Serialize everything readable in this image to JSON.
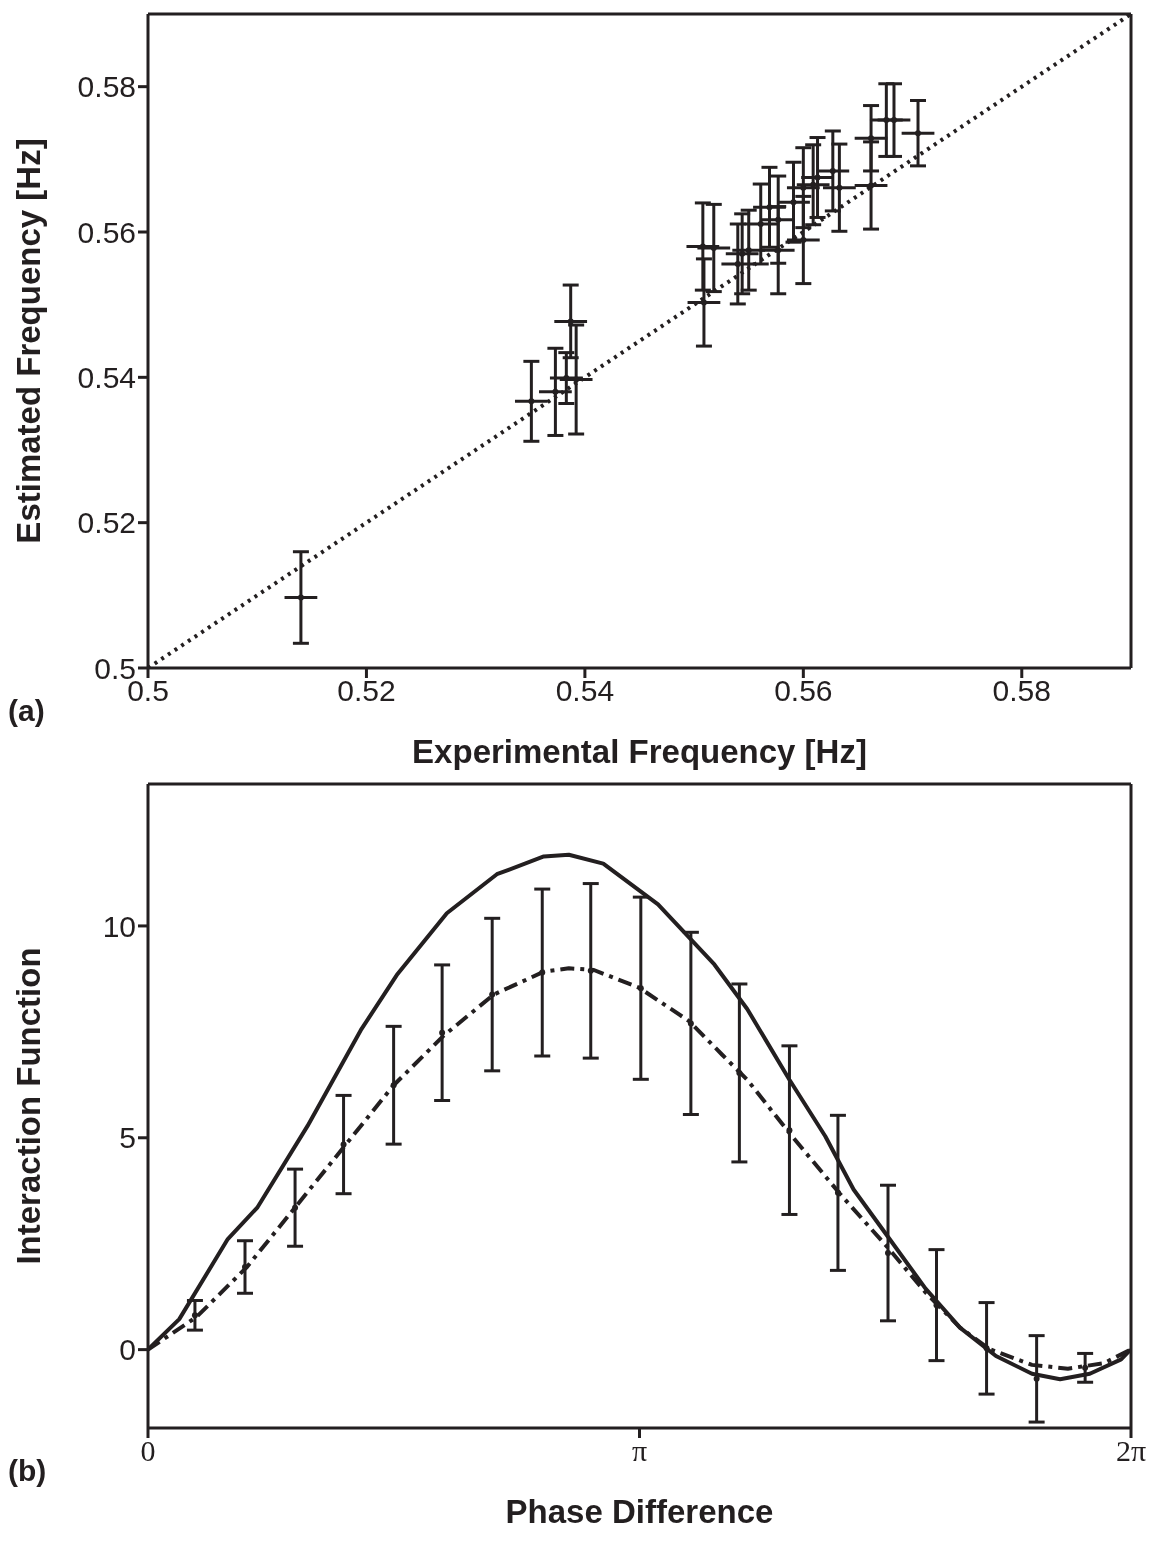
{
  "chart_data": [
    {
      "type": "scatter",
      "xlabel": "Experimental Frequency [Hz]",
      "ylabel": "Estimated Frequency [Hz]",
      "xlim": [
        0.5,
        0.59
      ],
      "ylim": [
        0.5,
        0.59
      ],
      "xticks": [
        0.5,
        0.52,
        0.54,
        0.56,
        0.58
      ],
      "yticks": [
        0.5,
        0.52,
        0.54,
        0.56,
        0.58
      ],
      "annotations": [
        "(a)"
      ],
      "series": [
        {
          "type": "scatter",
          "color": "#231f20",
          "marker": "circle",
          "x": [
            0.514,
            0.5351,
            0.5373,
            0.5383,
            0.5387,
            0.5392,
            0.5508,
            0.5518,
            0.5509,
            0.554,
            0.5544,
            0.555,
            0.5561,
            0.5569,
            0.5577,
            0.5577,
            0.5591,
            0.56,
            0.56,
            0.5609,
            0.5613,
            0.5627,
            0.5633,
            0.5662,
            0.5662,
            0.5676,
            0.5683,
            0.5705
          ],
          "values": [
            0.5097,
            0.5367,
            0.538,
            0.5399,
            0.5477,
            0.5397,
            0.558,
            0.5578,
            0.5503,
            0.5556,
            0.557,
            0.5575,
            0.5611,
            0.5634,
            0.5617,
            0.5575,
            0.5641,
            0.5661,
            0.5589,
            0.5665,
            0.5675,
            0.5684,
            0.5661,
            0.5729,
            0.5664,
            0.5754,
            0.5754,
            0.5736
          ],
          "errors": [
            0.0063,
            0.0055,
            0.006,
            0.0035,
            0.005,
            0.0075,
            0.006,
            0.006,
            0.006,
            0.0055,
            0.0055,
            0.0055,
            0.0055,
            0.0055,
            0.006,
            0.006,
            0.0055,
            0.0055,
            0.006,
            0.0055,
            0.0055,
            0.0055,
            0.006,
            0.0045,
            0.006,
            0.005,
            0.005,
            0.0045
          ],
          "xerrors": [
            0.0015,
            0.0015,
            0.0015,
            0.0015,
            0.0015,
            0.0015,
            0.0015,
            0.0015,
            0.0015,
            0.0015,
            0.0015,
            0.0015,
            0.0015,
            0.0015,
            0.0015,
            0.0015,
            0.0015,
            0.0015,
            0.0015,
            0.0015,
            0.0015,
            0.0015,
            0.0015,
            0.0015,
            0.0015,
            0.0015,
            0.0015,
            0.0015
          ]
        },
        {
          "type": "line",
          "color": "#231f20",
          "line_style": "dotted",
          "x": [
            0.5,
            0.59
          ],
          "values": [
            0.5,
            0.59
          ]
        }
      ]
    },
    {
      "type": "line",
      "xlabel": "Phase Difference",
      "ylabel": "Interaction Function",
      "xlim": [
        0,
        6.28319
      ],
      "ylim": [
        -1.85,
        13.35
      ],
      "xticks": [
        0,
        {
          "value": 3.14159,
          "label": "π"
        },
        {
          "value": 6.28319,
          "label": "2π"
        }
      ],
      "yticks": [
        0,
        5,
        10
      ],
      "annotations": [
        "(b)"
      ],
      "series": [
        {
          "type": "line",
          "color": "#231f20",
          "line_style": "solid",
          "x": [
            0,
            0.2,
            0.51,
            0.7,
            1.02,
            1.36,
            1.59,
            1.91,
            2.23,
            2.53,
            2.69,
            2.91,
            3.26,
            3.62,
            3.83,
            4.1,
            4.33,
            4.51,
            4.74,
            4.97,
            5.19,
            5.42,
            5.65,
            5.83,
            6.02,
            6.22,
            6.28
          ],
          "values": [
            0,
            0.72,
            2.61,
            3.36,
            5.28,
            7.54,
            8.84,
            10.3,
            11.22,
            11.64,
            11.68,
            11.47,
            10.51,
            9.09,
            8.04,
            6.37,
            5.03,
            3.78,
            2.61,
            1.44,
            0.52,
            -0.15,
            -0.57,
            -0.7,
            -0.57,
            -0.23,
            0
          ]
        },
        {
          "type": "line",
          "color": "#231f20",
          "line_style": "dashed",
          "x": [
            0,
            0.31,
            0.63,
            0.95,
            1.26,
            1.57,
            1.89,
            2.21,
            2.53,
            2.69,
            2.85,
            3.14,
            3.46,
            3.67,
            3.83,
            4.1,
            4.42,
            4.74,
            4.97,
            5.19,
            5.38,
            5.65,
            5.88,
            6.11,
            6.28
          ],
          "values": [
            0,
            0.77,
            1.94,
            3.4,
            4.82,
            6.24,
            7.41,
            8.38,
            8.92,
            9.0,
            8.96,
            8.54,
            7.75,
            6.96,
            6.37,
            5.11,
            3.69,
            2.36,
            1.35,
            0.52,
            0.01,
            -0.36,
            -0.45,
            -0.32,
            0
          ]
        },
        {
          "type": "scatter",
          "color": "#231f20",
          "marker": "circle",
          "x": [
            0.3,
            0.62,
            0.94,
            1.25,
            1.57,
            1.88,
            2.2,
            2.52,
            2.83,
            3.15,
            3.47,
            3.78,
            4.1,
            4.41,
            4.73,
            5.04,
            5.36,
            5.68,
            5.99
          ],
          "values": [
            0.81,
            1.95,
            3.35,
            4.84,
            6.24,
            7.48,
            8.38,
            8.9,
            8.94,
            8.53,
            7.7,
            6.53,
            5.18,
            3.7,
            2.28,
            1.05,
            0.03,
            -0.69,
            -0.43
          ],
          "errors": [
            0.35,
            0.62,
            0.91,
            1.16,
            1.39,
            1.6,
            1.8,
            1.97,
            2.06,
            2.15,
            2.15,
            2.1,
            1.99,
            1.83,
            1.6,
            1.31,
            1.08,
            1.02,
            0.34
          ]
        }
      ]
    }
  ]
}
